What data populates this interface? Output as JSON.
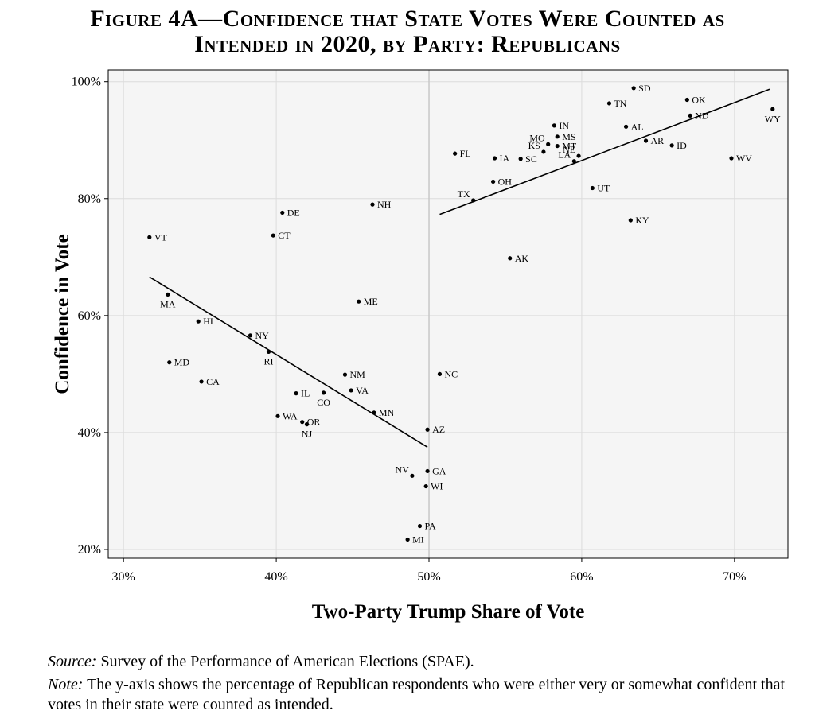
{
  "figure": {
    "title_line1": "Figure 4A—Confidence that State Votes Were Counted as",
    "title_line2": "Intended in 2020, by Party: Republicans",
    "source_label": "Source:",
    "source_text": " Survey of the Performance of American Elections (SPAE).",
    "note_label": "Note:",
    "note_text": " The y-axis shows the percentage of Republican respondents who were either very or somewhat confident that votes in their state were counted as intended."
  },
  "chart_data": {
    "type": "scatter",
    "xlabel": "Two-Party Trump Share of Vote",
    "ylabel": "Confidence in Vote",
    "xlim": [
      29,
      73.5
    ],
    "ylim": [
      18.5,
      102
    ],
    "xticks": [
      30,
      40,
      50,
      60,
      70
    ],
    "xtick_labels": [
      "30%",
      "40%",
      "50%",
      "60%",
      "70%"
    ],
    "yticks": [
      20,
      40,
      60,
      80,
      100
    ],
    "ytick_labels": [
      "20%",
      "40%",
      "60%",
      "80%",
      "100%"
    ],
    "vline_x": 50,
    "grid": true,
    "background": "#f5f5f5",
    "point_color": "#000000",
    "points": [
      {
        "state": "VT",
        "x": 31.7,
        "y": 73.4
      },
      {
        "state": "MA",
        "x": 32.9,
        "y": 63.6
      },
      {
        "state": "MD",
        "x": 33.0,
        "y": 52.0
      },
      {
        "state": "HI",
        "x": 34.9,
        "y": 59.0
      },
      {
        "state": "CA",
        "x": 35.1,
        "y": 48.7
      },
      {
        "state": "NY",
        "x": 38.3,
        "y": 56.6
      },
      {
        "state": "RI",
        "x": 39.5,
        "y": 53.8
      },
      {
        "state": "CT",
        "x": 39.8,
        "y": 73.7
      },
      {
        "state": "WA",
        "x": 40.1,
        "y": 42.8
      },
      {
        "state": "DE",
        "x": 40.4,
        "y": 77.6
      },
      {
        "state": "IL",
        "x": 41.3,
        "y": 46.7
      },
      {
        "state": "OR",
        "x": 41.7,
        "y": 41.8
      },
      {
        "state": "NJ",
        "x": 42.0,
        "y": 41.4
      },
      {
        "state": "CO",
        "x": 43.1,
        "y": 46.8
      },
      {
        "state": "NM",
        "x": 44.5,
        "y": 49.9
      },
      {
        "state": "VA",
        "x": 44.9,
        "y": 47.2
      },
      {
        "state": "ME",
        "x": 45.4,
        "y": 62.4
      },
      {
        "state": "NH",
        "x": 46.3,
        "y": 79.0
      },
      {
        "state": "MN",
        "x": 46.4,
        "y": 43.4
      },
      {
        "state": "NV",
        "x": 48.9,
        "y": 32.6
      },
      {
        "state": "MI",
        "x": 48.6,
        "y": 21.7
      },
      {
        "state": "PA",
        "x": 49.4,
        "y": 24.0
      },
      {
        "state": "WI",
        "x": 49.8,
        "y": 30.8
      },
      {
        "state": "GA",
        "x": 49.9,
        "y": 33.4
      },
      {
        "state": "AZ",
        "x": 49.9,
        "y": 40.5
      },
      {
        "state": "NC",
        "x": 50.7,
        "y": 50.0
      },
      {
        "state": "FL",
        "x": 51.7,
        "y": 87.7
      },
      {
        "state": "TX",
        "x": 52.9,
        "y": 79.7
      },
      {
        "state": "OH",
        "x": 54.2,
        "y": 82.9
      },
      {
        "state": "IA",
        "x": 54.3,
        "y": 86.9
      },
      {
        "state": "AK",
        "x": 55.3,
        "y": 69.8
      },
      {
        "state": "SC",
        "x": 56.0,
        "y": 86.8
      },
      {
        "state": "KS",
        "x": 57.5,
        "y": 88.0
      },
      {
        "state": "MO",
        "x": 57.8,
        "y": 89.3
      },
      {
        "state": "IN",
        "x": 58.2,
        "y": 92.5
      },
      {
        "state": "MS",
        "x": 58.4,
        "y": 90.6
      },
      {
        "state": "MT",
        "x": 58.4,
        "y": 89.0
      },
      {
        "state": "NE",
        "x": 59.8,
        "y": 87.3
      },
      {
        "state": "LA",
        "x": 59.5,
        "y": 86.4
      },
      {
        "state": "UT",
        "x": 60.7,
        "y": 81.8
      },
      {
        "state": "TN",
        "x": 61.8,
        "y": 96.3
      },
      {
        "state": "AL",
        "x": 62.9,
        "y": 92.3
      },
      {
        "state": "KY",
        "x": 63.2,
        "y": 76.3
      },
      {
        "state": "SD",
        "x": 63.4,
        "y": 98.9
      },
      {
        "state": "AR",
        "x": 64.2,
        "y": 89.9
      },
      {
        "state": "ID",
        "x": 65.9,
        "y": 89.1
      },
      {
        "state": "OK",
        "x": 66.9,
        "y": 96.9
      },
      {
        "state": "ND",
        "x": 67.1,
        "y": 94.2
      },
      {
        "state": "WV",
        "x": 69.8,
        "y": 86.9
      },
      {
        "state": "WY",
        "x": 72.5,
        "y": 95.3
      }
    ],
    "fit_lines": [
      {
        "x1": 31.7,
        "y1": 66.6,
        "x2": 49.9,
        "y2": 37.5
      },
      {
        "x1": 50.7,
        "y1": 77.3,
        "x2": 72.3,
        "y2": 98.7
      }
    ]
  }
}
